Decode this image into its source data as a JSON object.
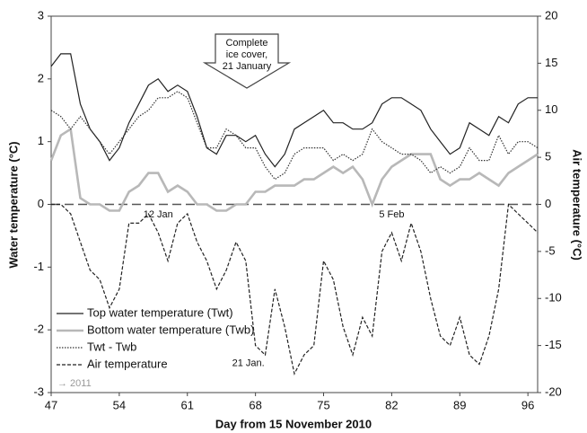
{
  "chart_data": {
    "type": "line",
    "x_label": "Day from 15 November 2010",
    "y_label": "Water temperature (°C)",
    "y2_label": "Air temperature (°C)",
    "xlim": [
      47,
      97
    ],
    "xticks": [
      47,
      54,
      61,
      68,
      75,
      82,
      89,
      96
    ],
    "ylim": [
      -3,
      3
    ],
    "yticks": [
      3,
      2,
      1,
      0,
      -1,
      -2,
      -3
    ],
    "y2lim": [
      -20,
      20
    ],
    "y2ticks": [
      20,
      15,
      10,
      5,
      0,
      -5,
      -10,
      -15,
      -20
    ],
    "legend": "bottom-left",
    "x": [
      47,
      48,
      49,
      50,
      51,
      52,
      53,
      54,
      55,
      56,
      57,
      58,
      59,
      60,
      61,
      62,
      63,
      64,
      65,
      66,
      67,
      68,
      69,
      70,
      71,
      72,
      73,
      74,
      75,
      76,
      77,
      78,
      79,
      80,
      81,
      82,
      83,
      84,
      85,
      86,
      87,
      88,
      89,
      90,
      91,
      92,
      93,
      94,
      95,
      96,
      97
    ],
    "series": [
      {
        "name": "Top water temperature (Twt)",
        "color": "#222222",
        "dash": "solid",
        "linewidth": 1.2,
        "values": [
          2.2,
          2.4,
          2.4,
          1.6,
          1.2,
          1.0,
          0.7,
          0.9,
          1.3,
          1.6,
          1.9,
          2.0,
          1.8,
          1.9,
          1.8,
          1.4,
          0.9,
          0.8,
          1.1,
          1.1,
          1.0,
          1.1,
          0.8,
          0.6,
          0.8,
          1.2,
          1.3,
          1.4,
          1.5,
          1.3,
          1.3,
          1.2,
          1.2,
          1.3,
          1.6,
          1.7,
          1.7,
          1.6,
          1.5,
          1.2,
          1.0,
          0.8,
          0.9,
          1.3,
          1.2,
          1.1,
          1.4,
          1.3,
          1.6,
          1.7,
          1.7
        ]
      },
      {
        "name": "Bottom water temperature (Twb)",
        "color": "#b8b8b8",
        "dash": "solid",
        "linewidth": 2.6,
        "values": [
          0.7,
          1.1,
          1.2,
          0.1,
          0.0,
          0.0,
          -0.1,
          -0.1,
          0.2,
          0.3,
          0.5,
          0.5,
          0.2,
          0.3,
          0.2,
          0.0,
          0.0,
          -0.1,
          -0.1,
          0.0,
          0.0,
          0.2,
          0.2,
          0.3,
          0.3,
          0.3,
          0.4,
          0.4,
          0.5,
          0.6,
          0.5,
          0.6,
          0.4,
          0.0,
          0.4,
          0.6,
          0.7,
          0.8,
          0.8,
          0.8,
          0.4,
          0.3,
          0.4,
          0.4,
          0.5,
          0.4,
          0.3,
          0.5,
          0.6,
          0.7,
          0.8
        ]
      },
      {
        "name": "Twt - Twb",
        "color": "#333333",
        "dash": "dotted",
        "linewidth": 1.2,
        "values": [
          1.5,
          1.4,
          1.2,
          1.4,
          1.2,
          1.0,
          0.8,
          1.0,
          1.2,
          1.4,
          1.5,
          1.7,
          1.7,
          1.8,
          1.7,
          1.3,
          0.9,
          0.9,
          1.2,
          1.1,
          0.9,
          0.9,
          0.6,
          0.4,
          0.5,
          0.8,
          0.9,
          0.9,
          0.9,
          0.7,
          0.8,
          0.7,
          0.8,
          1.2,
          1.0,
          0.9,
          0.8,
          0.8,
          0.7,
          0.5,
          0.6,
          0.5,
          0.6,
          0.9,
          0.7,
          0.7,
          1.1,
          0.8,
          1.0,
          1.0,
          0.9
        ]
      },
      {
        "name": "Air temperature",
        "color": "#222222",
        "dash": "dashed",
        "linewidth": 1.2,
        "axis": "y2",
        "values": [
          0,
          0,
          -1,
          -4,
          -7,
          -8,
          -11,
          -9,
          -2,
          -2,
          -1,
          -3,
          -6,
          -2,
          -1,
          -4,
          -6,
          -9,
          -7,
          -4,
          -6,
          -15,
          -16,
          -9,
          -13,
          -18,
          -16,
          -15,
          -6,
          -8,
          -13,
          -16,
          -12,
          -14,
          -5,
          -3,
          -6,
          -2,
          -5,
          -10,
          -14,
          -15,
          -12,
          -16,
          -17,
          -14,
          -9,
          0,
          -1,
          -2,
          -3
        ]
      }
    ],
    "annotations": [
      {
        "text": "12 Jan",
        "x": 58
      },
      {
        "text": "21 Jan.",
        "x": 68
      },
      {
        "text": "5 Feb",
        "x": 82
      }
    ],
    "callout": [
      "Complete",
      "ice cover,",
      "21 January"
    ],
    "footnote": "→ 2011"
  }
}
